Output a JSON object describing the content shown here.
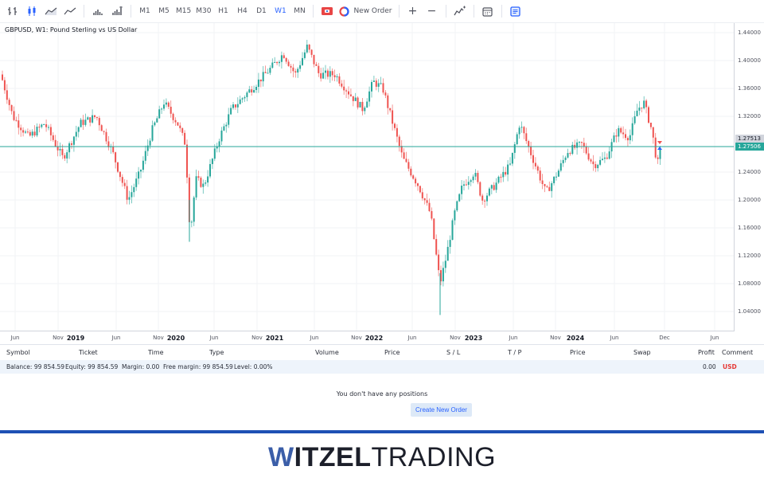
{
  "toolbar": {
    "chart_types": [
      {
        "name": "bars-icon",
        "active": false
      },
      {
        "name": "candles-icon",
        "active": true
      },
      {
        "name": "area-icon",
        "active": false
      },
      {
        "name": "line-icon",
        "active": false
      },
      {
        "name": "volume-icon",
        "active": false
      },
      {
        "name": "tick-volume-icon",
        "active": false
      }
    ],
    "timeframes": [
      {
        "label": "M1",
        "active": false
      },
      {
        "label": "M5",
        "active": false
      },
      {
        "label": "M15",
        "active": false
      },
      {
        "label": "M30",
        "active": false
      },
      {
        "label": "H1",
        "active": false
      },
      {
        "label": "H4",
        "active": false
      },
      {
        "label": "D1",
        "active": false
      },
      {
        "label": "W1",
        "active": true
      },
      {
        "label": "MN",
        "active": false
      }
    ],
    "new_order_label": "New Order",
    "zoom_in": "+",
    "zoom_out": "−"
  },
  "chart": {
    "title": "GBPUSD, W1: Pound Sterling vs US Dollar",
    "symbol": "GBPUSD",
    "timeframe": "W1",
    "bid_price": "1.27506",
    "ask_price": "1.27513",
    "price_ticks": [
      "1.44000",
      "1.40000",
      "1.36000",
      "1.32000",
      "1.24000",
      "1.20000",
      "1.16000",
      "1.12000",
      "1.08000",
      "1.04000"
    ],
    "time_ticks": [
      {
        "label": "Jun",
        "year": false
      },
      {
        "label": "Nov",
        "year": false
      },
      {
        "label": "2019",
        "year": true
      },
      {
        "label": "Jun",
        "year": false
      },
      {
        "label": "Nov",
        "year": false
      },
      {
        "label": "2020",
        "year": true
      },
      {
        "label": "Jun",
        "year": false
      },
      {
        "label": "Nov",
        "year": false
      },
      {
        "label": "2021",
        "year": true
      },
      {
        "label": "Jun",
        "year": false
      },
      {
        "label": "Nov",
        "year": false
      },
      {
        "label": "2022",
        "year": true
      },
      {
        "label": "Jun",
        "year": false
      },
      {
        "label": "Nov",
        "year": false
      },
      {
        "label": "2023",
        "year": true
      },
      {
        "label": "Jun",
        "year": false
      },
      {
        "label": "Nov",
        "year": false
      },
      {
        "label": "2024",
        "year": true
      },
      {
        "label": "Jun",
        "year": false
      },
      {
        "label": "Dec",
        "year": false
      },
      {
        "label": "Jun",
        "year": false
      }
    ],
    "colors": {
      "up": "#26a69a",
      "down": "#ef5350",
      "price_line": "#26a69a",
      "ask_tag": "#d1d4dc",
      "bid_tag": "#26a69a"
    }
  },
  "positions": {
    "columns": [
      "Symbol",
      "Ticket",
      "Time",
      "Type",
      "Volume",
      "Price",
      "S / L",
      "T / P",
      "Price",
      "Swap",
      "Profit",
      "Comment"
    ],
    "summary": {
      "balance": "Balance: 99 854.59",
      "equity": "Equity: 99 854.59",
      "margin": "Margin: 0.00",
      "free_margin": "Free margin: 99 854.59",
      "level": "Level: 0.00%",
      "profit": "0.00",
      "currency": "USD"
    },
    "empty_message": "You don't have any positions",
    "create_button": "Create New Order"
  },
  "brand": {
    "w": "W",
    "bold": "ITZEL",
    "light": "TRADING"
  }
}
